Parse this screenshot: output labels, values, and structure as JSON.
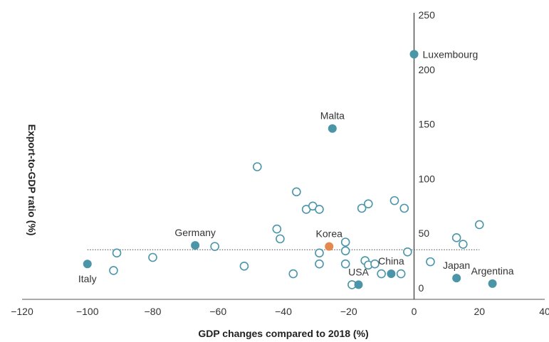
{
  "chart_data": {
    "type": "scatter",
    "title": "",
    "xlabel": "GDP changes compared to 2018 (%)",
    "ylabel": "Export-to-GDP ratio (%)",
    "xlim": [
      -120,
      40
    ],
    "ylim": [
      -10,
      250
    ],
    "x_ticks": [
      -120,
      -100,
      -80,
      -60,
      -40,
      -20,
      0,
      20,
      40
    ],
    "y_ticks": [
      0,
      50,
      100,
      150,
      200,
      250
    ],
    "x_tick_labels": [
      "−120",
      "−100",
      "−80",
      "−60",
      "−40",
      "−20",
      "0",
      "20",
      "40"
    ],
    "y_tick_labels": [
      "0",
      "50",
      "100",
      "150",
      "200",
      "250"
    ],
    "reference_line_y": 35,
    "colors": {
      "highlight": "#4a95a8",
      "korea": "#e5884f",
      "outline": "#4a95a8",
      "axis": "#555555"
    },
    "labeled_points": [
      {
        "label": "Luxembourg",
        "x": 0,
        "y": 214,
        "style": "highlight",
        "label_pos": "right"
      },
      {
        "label": "Malta",
        "x": -25,
        "y": 146,
        "style": "highlight",
        "label_pos": "top"
      },
      {
        "label": "Germany",
        "x": -67,
        "y": 39,
        "style": "highlight",
        "label_pos": "top"
      },
      {
        "label": "Korea",
        "x": -26,
        "y": 38,
        "style": "korea",
        "label_pos": "top"
      },
      {
        "label": "Italy",
        "x": -100,
        "y": 22,
        "style": "highlight",
        "label_pos": "bottom"
      },
      {
        "label": "China",
        "x": -7,
        "y": 13,
        "style": "highlight",
        "label_pos": "top"
      },
      {
        "label": "USA",
        "x": -17,
        "y": 3,
        "style": "highlight",
        "label_pos": "top"
      },
      {
        "label": "Japan",
        "x": 13,
        "y": 9,
        "style": "highlight",
        "label_pos": "top"
      },
      {
        "label": "Argentina",
        "x": 24,
        "y": 4,
        "style": "highlight",
        "label_pos": "top"
      }
    ],
    "other_points": [
      {
        "x": -48,
        "y": 111
      },
      {
        "x": -36,
        "y": 88
      },
      {
        "x": -33,
        "y": 72
      },
      {
        "x": -31,
        "y": 75
      },
      {
        "x": -29,
        "y": 72
      },
      {
        "x": -16,
        "y": 73
      },
      {
        "x": -14,
        "y": 77
      },
      {
        "x": -6,
        "y": 80
      },
      {
        "x": -3,
        "y": 73
      },
      {
        "x": 20,
        "y": 58
      },
      {
        "x": 13,
        "y": 46
      },
      {
        "x": 15,
        "y": 40
      },
      {
        "x": -42,
        "y": 54
      },
      {
        "x": -41,
        "y": 45
      },
      {
        "x": -61,
        "y": 38
      },
      {
        "x": -91,
        "y": 32
      },
      {
        "x": -80,
        "y": 28
      },
      {
        "x": -92,
        "y": 16
      },
      {
        "x": -52,
        "y": 20
      },
      {
        "x": -37,
        "y": 13
      },
      {
        "x": -29,
        "y": 32
      },
      {
        "x": -29,
        "y": 22
      },
      {
        "x": -21,
        "y": 42
      },
      {
        "x": -21,
        "y": 34
      },
      {
        "x": -21,
        "y": 22
      },
      {
        "x": -15,
        "y": 25
      },
      {
        "x": -14,
        "y": 21
      },
      {
        "x": -12,
        "y": 22
      },
      {
        "x": -10,
        "y": 13
      },
      {
        "x": -4,
        "y": 13
      },
      {
        "x": -2,
        "y": 33
      },
      {
        "x": 5,
        "y": 24
      },
      {
        "x": -19,
        "y": 3
      }
    ]
  }
}
